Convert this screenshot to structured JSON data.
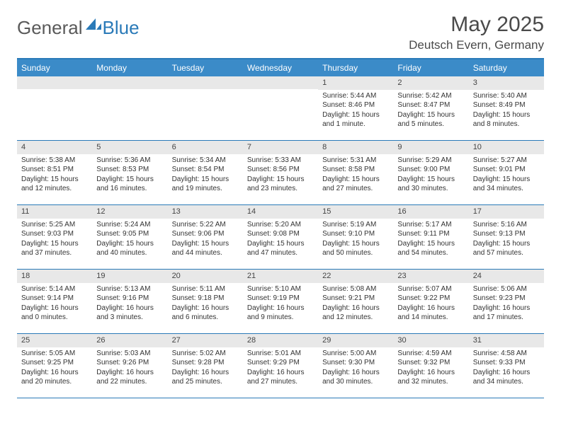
{
  "logo": {
    "part1": "General",
    "part2": "Blue"
  },
  "title": "May 2025",
  "location": "Deutsch Evern, Germany",
  "colors": {
    "header_bg": "#3b8bc8",
    "border": "#2a7ab8",
    "daynum_bg": "#e8e8e8",
    "text": "#333333",
    "logo_gray": "#5a5a5a",
    "logo_blue": "#2a7ab8"
  },
  "day_headers": [
    "Sunday",
    "Monday",
    "Tuesday",
    "Wednesday",
    "Thursday",
    "Friday",
    "Saturday"
  ],
  "weeks": [
    [
      {
        "n": "",
        "sunrise": "",
        "sunset": "",
        "daylight": ""
      },
      {
        "n": "",
        "sunrise": "",
        "sunset": "",
        "daylight": ""
      },
      {
        "n": "",
        "sunrise": "",
        "sunset": "",
        "daylight": ""
      },
      {
        "n": "",
        "sunrise": "",
        "sunset": "",
        "daylight": ""
      },
      {
        "n": "1",
        "sunrise": "Sunrise: 5:44 AM",
        "sunset": "Sunset: 8:46 PM",
        "daylight": "Daylight: 15 hours and 1 minute."
      },
      {
        "n": "2",
        "sunrise": "Sunrise: 5:42 AM",
        "sunset": "Sunset: 8:47 PM",
        "daylight": "Daylight: 15 hours and 5 minutes."
      },
      {
        "n": "3",
        "sunrise": "Sunrise: 5:40 AM",
        "sunset": "Sunset: 8:49 PM",
        "daylight": "Daylight: 15 hours and 8 minutes."
      }
    ],
    [
      {
        "n": "4",
        "sunrise": "Sunrise: 5:38 AM",
        "sunset": "Sunset: 8:51 PM",
        "daylight": "Daylight: 15 hours and 12 minutes."
      },
      {
        "n": "5",
        "sunrise": "Sunrise: 5:36 AM",
        "sunset": "Sunset: 8:53 PM",
        "daylight": "Daylight: 15 hours and 16 minutes."
      },
      {
        "n": "6",
        "sunrise": "Sunrise: 5:34 AM",
        "sunset": "Sunset: 8:54 PM",
        "daylight": "Daylight: 15 hours and 19 minutes."
      },
      {
        "n": "7",
        "sunrise": "Sunrise: 5:33 AM",
        "sunset": "Sunset: 8:56 PM",
        "daylight": "Daylight: 15 hours and 23 minutes."
      },
      {
        "n": "8",
        "sunrise": "Sunrise: 5:31 AM",
        "sunset": "Sunset: 8:58 PM",
        "daylight": "Daylight: 15 hours and 27 minutes."
      },
      {
        "n": "9",
        "sunrise": "Sunrise: 5:29 AM",
        "sunset": "Sunset: 9:00 PM",
        "daylight": "Daylight: 15 hours and 30 minutes."
      },
      {
        "n": "10",
        "sunrise": "Sunrise: 5:27 AM",
        "sunset": "Sunset: 9:01 PM",
        "daylight": "Daylight: 15 hours and 34 minutes."
      }
    ],
    [
      {
        "n": "11",
        "sunrise": "Sunrise: 5:25 AM",
        "sunset": "Sunset: 9:03 PM",
        "daylight": "Daylight: 15 hours and 37 minutes."
      },
      {
        "n": "12",
        "sunrise": "Sunrise: 5:24 AM",
        "sunset": "Sunset: 9:05 PM",
        "daylight": "Daylight: 15 hours and 40 minutes."
      },
      {
        "n": "13",
        "sunrise": "Sunrise: 5:22 AM",
        "sunset": "Sunset: 9:06 PM",
        "daylight": "Daylight: 15 hours and 44 minutes."
      },
      {
        "n": "14",
        "sunrise": "Sunrise: 5:20 AM",
        "sunset": "Sunset: 9:08 PM",
        "daylight": "Daylight: 15 hours and 47 minutes."
      },
      {
        "n": "15",
        "sunrise": "Sunrise: 5:19 AM",
        "sunset": "Sunset: 9:10 PM",
        "daylight": "Daylight: 15 hours and 50 minutes."
      },
      {
        "n": "16",
        "sunrise": "Sunrise: 5:17 AM",
        "sunset": "Sunset: 9:11 PM",
        "daylight": "Daylight: 15 hours and 54 minutes."
      },
      {
        "n": "17",
        "sunrise": "Sunrise: 5:16 AM",
        "sunset": "Sunset: 9:13 PM",
        "daylight": "Daylight: 15 hours and 57 minutes."
      }
    ],
    [
      {
        "n": "18",
        "sunrise": "Sunrise: 5:14 AM",
        "sunset": "Sunset: 9:14 PM",
        "daylight": "Daylight: 16 hours and 0 minutes."
      },
      {
        "n": "19",
        "sunrise": "Sunrise: 5:13 AM",
        "sunset": "Sunset: 9:16 PM",
        "daylight": "Daylight: 16 hours and 3 minutes."
      },
      {
        "n": "20",
        "sunrise": "Sunrise: 5:11 AM",
        "sunset": "Sunset: 9:18 PM",
        "daylight": "Daylight: 16 hours and 6 minutes."
      },
      {
        "n": "21",
        "sunrise": "Sunrise: 5:10 AM",
        "sunset": "Sunset: 9:19 PM",
        "daylight": "Daylight: 16 hours and 9 minutes."
      },
      {
        "n": "22",
        "sunrise": "Sunrise: 5:08 AM",
        "sunset": "Sunset: 9:21 PM",
        "daylight": "Daylight: 16 hours and 12 minutes."
      },
      {
        "n": "23",
        "sunrise": "Sunrise: 5:07 AM",
        "sunset": "Sunset: 9:22 PM",
        "daylight": "Daylight: 16 hours and 14 minutes."
      },
      {
        "n": "24",
        "sunrise": "Sunrise: 5:06 AM",
        "sunset": "Sunset: 9:23 PM",
        "daylight": "Daylight: 16 hours and 17 minutes."
      }
    ],
    [
      {
        "n": "25",
        "sunrise": "Sunrise: 5:05 AM",
        "sunset": "Sunset: 9:25 PM",
        "daylight": "Daylight: 16 hours and 20 minutes."
      },
      {
        "n": "26",
        "sunrise": "Sunrise: 5:03 AM",
        "sunset": "Sunset: 9:26 PM",
        "daylight": "Daylight: 16 hours and 22 minutes."
      },
      {
        "n": "27",
        "sunrise": "Sunrise: 5:02 AM",
        "sunset": "Sunset: 9:28 PM",
        "daylight": "Daylight: 16 hours and 25 minutes."
      },
      {
        "n": "28",
        "sunrise": "Sunrise: 5:01 AM",
        "sunset": "Sunset: 9:29 PM",
        "daylight": "Daylight: 16 hours and 27 minutes."
      },
      {
        "n": "29",
        "sunrise": "Sunrise: 5:00 AM",
        "sunset": "Sunset: 9:30 PM",
        "daylight": "Daylight: 16 hours and 30 minutes."
      },
      {
        "n": "30",
        "sunrise": "Sunrise: 4:59 AM",
        "sunset": "Sunset: 9:32 PM",
        "daylight": "Daylight: 16 hours and 32 minutes."
      },
      {
        "n": "31",
        "sunrise": "Sunrise: 4:58 AM",
        "sunset": "Sunset: 9:33 PM",
        "daylight": "Daylight: 16 hours and 34 minutes."
      }
    ]
  ]
}
